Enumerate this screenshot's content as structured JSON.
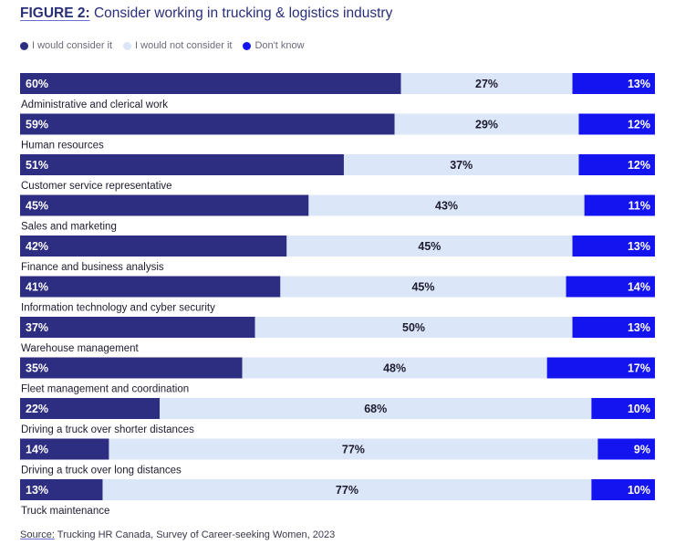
{
  "header": {
    "figure_label": "FIGURE 2:",
    "title": "Consider working in trucking & logistics industry"
  },
  "colors": {
    "consider": "#2d2d82",
    "not_consider": "#dbe6f8",
    "dont_know": "#1414f0"
  },
  "chart_data": {
    "type": "bar",
    "orientation": "horizontal",
    "stacked": true,
    "normalized": true,
    "categories": [
      "Administrative and clerical work",
      "Human resources",
      "Customer service representative",
      "Sales and marketing",
      "Finance and business analysis",
      "Information technology and cyber security",
      "Warehouse management",
      "Fleet management and coordination",
      "Driving a truck over shorter distances",
      "Driving a truck over long distances",
      "Truck maintenance"
    ],
    "series": [
      {
        "name": "I would consider it",
        "values": [
          60,
          59,
          51,
          45,
          42,
          41,
          37,
          35,
          22,
          14,
          13
        ]
      },
      {
        "name": "I would not consider it",
        "values": [
          27,
          29,
          37,
          43,
          45,
          45,
          50,
          48,
          68,
          77,
          77
        ]
      },
      {
        "name": "Don't know",
        "values": [
          13,
          12,
          12,
          11,
          13,
          14,
          13,
          17,
          10,
          9,
          10
        ]
      }
    ],
    "value_suffix": "%",
    "legend_position": "top-left",
    "grid": false
  },
  "footer": {
    "source_label": "Source:",
    "source_text": "Trucking HR Canada, Survey of Career-seeking Women, 2023"
  }
}
